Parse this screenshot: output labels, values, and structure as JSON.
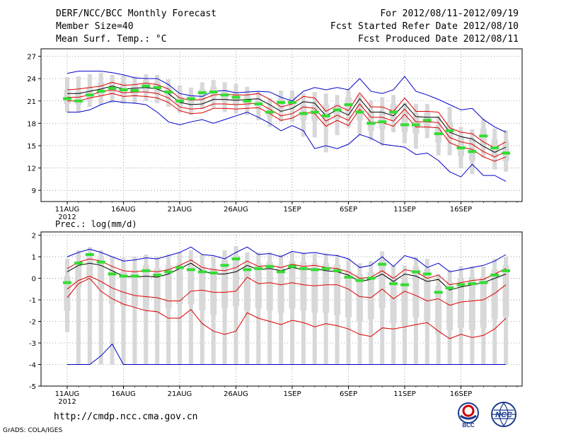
{
  "header": {
    "title": "DERF/NCC/BCC Monthly Forecast",
    "member_size": "Member Size=40",
    "variable": "Mean Surf. Temp.: °C",
    "forecast_period": "For 2012/08/11-2012/09/19",
    "start_date": "Fcst Started Refer Date 2012/08/10",
    "produced_date": "Fcst Produced Date 2012/08/11"
  },
  "footer": {
    "url": "http://cmdp.ncc.cma.gov.cn",
    "credit": "GrADS: COLA/IGES",
    "logo_bcc": "BCC",
    "logo_ncc": "NCC"
  },
  "colors": {
    "box": "#d8d8d8",
    "green": "#33dd33",
    "red": "#dd0000",
    "blue": "#0000cc",
    "black": "#000000"
  },
  "chart_data": [
    {
      "type": "line",
      "title": "Mean Surf. Temp.: °C",
      "year_label": "2012",
      "x_tick_labels": [
        "11AUG",
        "16AUG",
        "21AUG",
        "26AUG",
        "1SEP",
        "6SEP",
        "11SEP",
        "16SEP"
      ],
      "x_tick_days": [
        1,
        6,
        11,
        16,
        21,
        26,
        31,
        36
      ],
      "ylim": [
        7.5,
        28
      ],
      "yticks": [
        9,
        12,
        15,
        18,
        21,
        24,
        27
      ],
      "days": 40,
      "series": [
        {
          "name": "ensemble max",
          "values": [
            24.7,
            25.0,
            25.0,
            25.0,
            24.8,
            24.5,
            24.1,
            24.0,
            24.0,
            23.2,
            22.0,
            21.7,
            21.6,
            22.3,
            22.4,
            22.1,
            22.2,
            22.3,
            22.2,
            21.5,
            21.0,
            22.3,
            22.8,
            22.5,
            22.8,
            22.5,
            24.0,
            22.3,
            22.0,
            22.5,
            24.3,
            22.3,
            21.8,
            21.2,
            20.5,
            19.8,
            20.0,
            18.5,
            17.5,
            16.8
          ]
        },
        {
          "name": "upper",
          "values": [
            22.5,
            22.6,
            22.8,
            23.0,
            23.5,
            23.1,
            23.2,
            23.4,
            23.2,
            22.6,
            21.4,
            21.1,
            21.2,
            21.8,
            21.9,
            21.8,
            21.8,
            22.0,
            21.2,
            20.2,
            20.6,
            21.6,
            21.4,
            19.6,
            20.4,
            19.7,
            22.1,
            20.2,
            20.2,
            19.6,
            21.4,
            19.6,
            19.6,
            19.5,
            17.4,
            16.8,
            16.6,
            15.5,
            14.7,
            15.5
          ]
        },
        {
          "name": "ensemble mean",
          "values": [
            22.0,
            22.0,
            22.3,
            22.6,
            23.0,
            22.6,
            22.7,
            22.8,
            22.6,
            22.0,
            20.8,
            20.5,
            20.6,
            21.2,
            21.2,
            21.1,
            21.2,
            21.3,
            20.5,
            19.6,
            20.0,
            20.9,
            20.7,
            19.0,
            19.8,
            19.1,
            21.3,
            19.5,
            19.5,
            19.0,
            20.6,
            18.9,
            18.8,
            18.8,
            16.8,
            16.2,
            15.9,
            14.9,
            14.1,
            14.8
          ]
        },
        {
          "name": "lower",
          "values": [
            21.5,
            21.5,
            21.8,
            22.2,
            22.5,
            22.1,
            22.2,
            22.2,
            22.0,
            21.4,
            20.2,
            19.9,
            20.0,
            20.6,
            20.6,
            20.5,
            20.6,
            20.7,
            19.9,
            19.0,
            19.3,
            20.2,
            20.0,
            18.3,
            19.1,
            18.4,
            20.6,
            18.8,
            18.8,
            18.3,
            19.9,
            18.2,
            18.2,
            18.1,
            16.1,
            15.5,
            15.2,
            14.2,
            13.5,
            14.2
          ]
        },
        {
          "name": "lower2",
          "values": [
            21.0,
            21.0,
            21.4,
            21.7,
            22.0,
            21.6,
            21.7,
            21.6,
            21.4,
            20.8,
            19.7,
            19.3,
            19.4,
            20.0,
            20.0,
            19.9,
            20.0,
            20.1,
            19.3,
            18.4,
            18.7,
            19.5,
            19.3,
            17.6,
            18.4,
            17.7,
            19.9,
            18.1,
            18.1,
            17.6,
            19.2,
            17.5,
            17.5,
            17.4,
            15.4,
            14.8,
            14.5,
            13.5,
            12.9,
            13.5
          ]
        },
        {
          "name": "ensemble min",
          "values": [
            19.5,
            19.5,
            19.8,
            20.5,
            21.0,
            20.8,
            20.7,
            20.5,
            19.5,
            18.2,
            17.8,
            18.2,
            18.5,
            18.0,
            18.5,
            19.0,
            19.5,
            18.8,
            18.0,
            17.0,
            17.7,
            17.0,
            14.6,
            15.0,
            14.6,
            15.2,
            16.5,
            16.0,
            15.2,
            15.0,
            14.8,
            13.8,
            14.0,
            13.0,
            11.5,
            10.8,
            12.5,
            11.0,
            11.0,
            10.2
          ]
        },
        {
          "name": "green marks",
          "values": [
            21.3,
            21.0,
            21.8,
            22.3,
            22.7,
            22.5,
            22.4,
            23.0,
            22.8,
            22.2,
            21.0,
            21.3,
            22.1,
            22.2,
            21.8,
            21.5,
            21.0,
            20.6,
            19.5,
            20.8,
            20.8,
            19.3,
            19.5,
            19.0,
            19.8,
            20.5,
            19.5,
            18.0,
            18.2,
            19.5,
            17.8,
            17.8,
            18.4,
            16.6,
            17.0,
            14.7,
            14.2,
            16.3,
            14.7,
            14.0
          ]
        },
        {
          "name": "box q75",
          "values": [
            22.5,
            22.3,
            22.8,
            23.5,
            23.5,
            23.5,
            23.3,
            23.8,
            23.6,
            22.8,
            21.6,
            21.8,
            22.6,
            22.9,
            22.4,
            22.0,
            21.8,
            21.2,
            20.1,
            21.4,
            21.5,
            20.5,
            20.5,
            20.5,
            20.6,
            21.5,
            20.5,
            19.6,
            19.7,
            20.6,
            19.4,
            19.2,
            19.5,
            17.6,
            18.2,
            16.2,
            15.9,
            17.3,
            15.9,
            15.6
          ]
        },
        {
          "name": "box q25",
          "values": [
            20.6,
            20.5,
            21.2,
            21.6,
            21.9,
            21.7,
            21.6,
            22.2,
            21.9,
            21.3,
            20.3,
            20.5,
            21.1,
            21.4,
            20.9,
            20.6,
            20.4,
            19.9,
            18.8,
            19.9,
            19.9,
            18.4,
            18.3,
            17.8,
            18.6,
            19.4,
            18.4,
            17.0,
            17.2,
            18.3,
            16.8,
            16.6,
            17.3,
            15.4,
            15.8,
            13.6,
            13.0,
            14.9,
            13.4,
            12.9
          ]
        },
        {
          "name": "box max",
          "values": [
            24.2,
            24.3,
            24.6,
            24.8,
            24.5,
            24.4,
            24.3,
            24.6,
            24.5,
            23.9,
            23.1,
            22.8,
            23.5,
            23.8,
            23.5,
            23.3,
            22.9,
            22.3,
            21.4,
            22.4,
            22.4,
            22.0,
            22.2,
            22.0,
            21.8,
            22.5,
            21.8,
            21.1,
            21.5,
            21.8,
            20.8,
            20.6,
            20.6,
            19.0,
            20.2,
            17.5,
            17.2,
            18.6,
            17.3,
            17.1
          ]
        },
        {
          "name": "box min",
          "values": [
            19.5,
            19.5,
            20.2,
            20.5,
            20.7,
            20.6,
            20.6,
            21.0,
            20.7,
            20.2,
            19.4,
            19.1,
            19.9,
            20.1,
            19.5,
            19.3,
            19.1,
            18.4,
            17.5,
            18.2,
            18.2,
            16.2,
            16.1,
            14.1,
            16.4,
            17.4,
            16.4,
            15.7,
            15.0,
            16.8,
            15.3,
            14.6,
            16.0,
            13.7,
            13.7,
            12.0,
            11.2,
            13.4,
            11.8,
            11.5
          ]
        }
      ]
    },
    {
      "type": "line",
      "title": "Prec.: log(mm/d)",
      "year_label": "2012",
      "x_tick_labels": [
        "11AUG",
        "16AUG",
        "21AUG",
        "26AUG",
        "1SEP",
        "6SEP",
        "11SEP",
        "16SEP"
      ],
      "x_tick_days": [
        1,
        6,
        11,
        16,
        21,
        26,
        31,
        36
      ],
      "ylim": [
        -5,
        2.15
      ],
      "yticks": [
        -5,
        -4,
        -3,
        -2,
        -1,
        0,
        1,
        2
      ],
      "days": 40,
      "series": [
        {
          "name": "ensemble max",
          "values": [
            1.0,
            1.2,
            1.35,
            1.2,
            1.0,
            0.8,
            0.85,
            0.95,
            0.9,
            1.05,
            1.2,
            1.45,
            1.1,
            1.05,
            0.9,
            1.2,
            1.45,
            1.1,
            1.15,
            1.0,
            1.25,
            1.15,
            1.2,
            1.1,
            1.05,
            0.9,
            0.5,
            0.6,
            1.0,
            0.55,
            1.05,
            0.9,
            0.5,
            0.7,
            0.3,
            0.4,
            0.5,
            0.6,
            0.8,
            1.1
          ]
        },
        {
          "name": "upper",
          "values": [
            0.45,
            0.75,
            0.9,
            0.8,
            0.55,
            0.35,
            0.3,
            0.35,
            0.3,
            0.4,
            0.6,
            0.85,
            0.5,
            0.4,
            0.35,
            0.5,
            0.8,
            0.55,
            0.6,
            0.5,
            0.65,
            0.55,
            0.6,
            0.5,
            0.45,
            0.3,
            0.0,
            0.05,
            0.35,
            0.0,
            0.4,
            0.3,
            0.0,
            0.15,
            -0.3,
            -0.2,
            -0.1,
            -0.05,
            0.2,
            0.45
          ]
        },
        {
          "name": "ensemble mean",
          "values": [
            0.3,
            0.6,
            0.7,
            0.6,
            0.35,
            0.1,
            0.05,
            0.1,
            0.05,
            0.2,
            0.45,
            0.7,
            0.35,
            0.2,
            0.2,
            0.3,
            0.6,
            0.4,
            0.45,
            0.35,
            0.5,
            0.4,
            0.45,
            0.35,
            0.3,
            0.15,
            -0.15,
            -0.05,
            0.2,
            -0.15,
            0.2,
            0.1,
            -0.15,
            -0.05,
            -0.55,
            -0.4,
            -0.3,
            -0.2,
            0.0,
            0.2
          ]
        },
        {
          "name": "lower",
          "values": [
            -0.5,
            -0.1,
            0.1,
            -0.15,
            -0.45,
            -0.65,
            -0.8,
            -0.85,
            -0.9,
            -1.05,
            -1.05,
            -0.6,
            -0.55,
            -0.65,
            -0.65,
            -0.6,
            0.05,
            -0.25,
            -0.2,
            -0.3,
            -0.2,
            -0.3,
            -0.35,
            -0.3,
            -0.3,
            -0.5,
            -0.85,
            -0.9,
            -0.5,
            -0.95,
            -0.6,
            -0.8,
            -1.05,
            -0.95,
            -1.25,
            -1.1,
            -1.05,
            -1.0,
            -0.7,
            -0.3
          ]
        },
        {
          "name": "lower2",
          "values": [
            -0.9,
            -0.25,
            0.0,
            -0.6,
            -0.95,
            -1.2,
            -1.35,
            -1.5,
            -1.55,
            -1.85,
            -1.85,
            -1.45,
            -2.1,
            -2.45,
            -2.6,
            -2.45,
            -1.6,
            -1.85,
            -2.0,
            -2.15,
            -1.95,
            -2.05,
            -2.25,
            -2.1,
            -2.2,
            -2.35,
            -2.6,
            -2.7,
            -2.3,
            -2.35,
            -2.25,
            -2.15,
            -2.05,
            -2.45,
            -2.8,
            -2.6,
            -2.75,
            -2.65,
            -2.35,
            -1.85
          ]
        },
        {
          "name": "ensemble min",
          "values": [
            -4.0,
            -4.0,
            -4.0,
            -3.6,
            -3.05,
            -4.0,
            -4.0,
            -4.0,
            -4.0,
            -4.0,
            -4.0,
            -4.0,
            -4.0,
            -4.0,
            -4.0,
            -4.0,
            -4.0,
            -4.0,
            -4.0,
            -4.0,
            -4.0,
            -4.0,
            -4.0,
            -4.0,
            -4.0,
            -4.0,
            -4.0,
            -4.0,
            -4.0,
            -4.0,
            -4.0,
            -4.0,
            -4.0,
            -4.0,
            -4.0,
            -4.0,
            -4.0,
            -4.0,
            -4.0,
            -4.0
          ]
        },
        {
          "name": "green marks",
          "values": [
            -0.2,
            0.7,
            1.1,
            0.75,
            0.2,
            0.1,
            0.1,
            0.35,
            0.15,
            0.3,
            0.5,
            0.4,
            0.3,
            0.25,
            0.6,
            0.9,
            0.4,
            0.45,
            0.55,
            0.3,
            0.55,
            0.45,
            0.4,
            0.45,
            0.35,
            0.05,
            -0.1,
            0.0,
            0.65,
            -0.25,
            -0.3,
            0.3,
            0.2,
            -0.65,
            -0.45,
            -0.3,
            -0.25,
            -0.2,
            0.15,
            0.35
          ]
        },
        {
          "name": "box q75",
          "values": [
            0.1,
            0.8,
            1.1,
            0.95,
            0.4,
            0.3,
            0.4,
            0.6,
            0.45,
            0.6,
            0.7,
            0.7,
            0.6,
            0.5,
            0.85,
            1.05,
            0.7,
            0.7,
            0.75,
            0.6,
            0.8,
            0.75,
            0.7,
            0.7,
            0.65,
            0.35,
            0.2,
            0.3,
            0.9,
            0.1,
            0.05,
            0.55,
            0.45,
            -0.35,
            -0.15,
            0.0,
            0.05,
            0.05,
            0.4,
            0.6
          ]
        },
        {
          "name": "box q25",
          "values": [
            -1.5,
            -0.4,
            -0.1,
            -0.5,
            -1.2,
            -1.3,
            -1.3,
            -1.5,
            -1.6,
            -1.4,
            -1.2,
            -1.2,
            -1.5,
            -1.7,
            -1.4,
            -1.3,
            -1.5,
            -1.4,
            -1.5,
            -1.6,
            -1.4,
            -1.5,
            -1.6,
            -1.6,
            -1.7,
            -1.8,
            -2.0,
            -1.9,
            -1.4,
            -2.1,
            -2.2,
            -1.8,
            -2.0,
            -2.6,
            -2.4,
            -2.3,
            -2.4,
            -2.3,
            -1.9,
            -1.8
          ]
        },
        {
          "name": "box max",
          "values": [
            0.9,
            1.3,
            1.45,
            1.3,
            1.0,
            0.95,
            1.0,
            1.1,
            1.0,
            1.1,
            1.2,
            1.3,
            1.1,
            1.0,
            1.3,
            1.5,
            1.2,
            1.2,
            1.2,
            1.1,
            1.2,
            1.2,
            1.15,
            1.15,
            1.1,
            0.9,
            0.7,
            0.8,
            1.25,
            0.6,
            0.6,
            1.0,
            0.9,
            0.2,
            0.4,
            0.55,
            0.55,
            0.55,
            0.9,
            1.0
          ]
        },
        {
          "name": "box min",
          "values": [
            -2.5,
            -4.0,
            -4.0,
            -4.0,
            -4.0,
            -4.0,
            -4.0,
            -4.0,
            -4.0,
            -4.0,
            -4.0,
            -4.0,
            -4.0,
            -4.0,
            -4.0,
            -4.0,
            -4.0,
            -4.0,
            -4.0,
            -4.0,
            -4.0,
            -4.0,
            -4.0,
            -4.0,
            -4.0,
            -4.0,
            -4.0,
            -4.0,
            -4.0,
            -4.0,
            -4.0,
            -4.0,
            -4.0,
            -4.0,
            -4.0,
            -4.0,
            -4.0,
            -4.0,
            -4.0,
            -4.0
          ]
        }
      ]
    }
  ]
}
